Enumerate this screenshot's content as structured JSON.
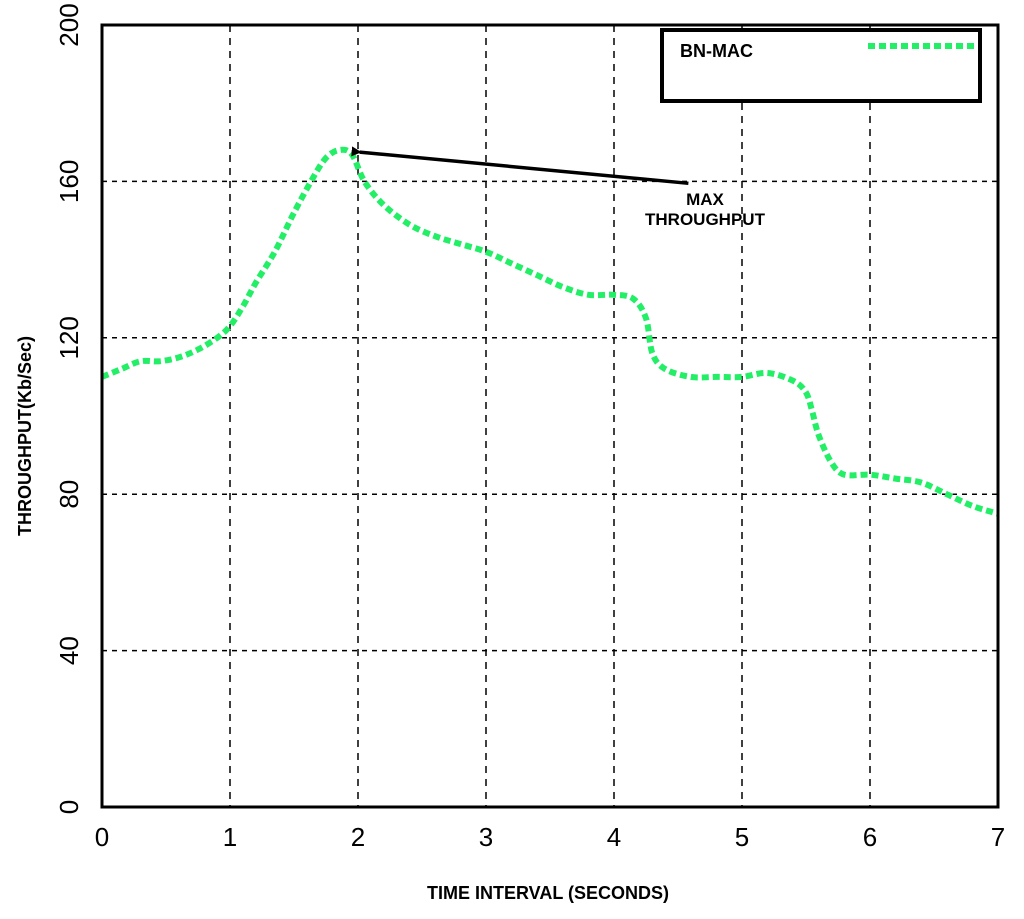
{
  "chart_data": {
    "type": "line",
    "xlabel": "TIME INTERVAL (SECONDS)",
    "ylabel": "THROUGHPUT(Kb/Sec)",
    "xlim": [
      0,
      7
    ],
    "ylim": [
      0,
      200
    ],
    "x_ticks": [
      0,
      1,
      2,
      3,
      4,
      5,
      6,
      7
    ],
    "y_ticks": [
      0,
      40,
      80,
      120,
      160,
      200
    ],
    "grid": true,
    "legend_position": "top-right",
    "series": [
      {
        "name": "BN-MAC",
        "color": "#22ee66",
        "x": [
          0.0,
          0.15,
          0.3,
          0.45,
          0.6,
          0.75,
          0.9,
          1.0,
          1.1,
          1.2,
          1.35,
          1.5,
          1.65,
          1.75,
          1.85,
          1.95,
          2.05,
          2.2,
          2.4,
          2.6,
          2.8,
          3.0,
          3.2,
          3.4,
          3.6,
          3.8,
          4.0,
          4.15,
          4.25,
          4.3,
          4.4,
          4.6,
          4.8,
          5.0,
          5.2,
          5.4,
          5.5,
          5.55,
          5.6,
          5.7,
          5.8,
          6.0,
          6.2,
          6.4,
          6.6,
          6.8,
          7.0
        ],
        "y": [
          110,
          112,
          114,
          114,
          115,
          117,
          120,
          123,
          128,
          134,
          142,
          152,
          161,
          166,
          168,
          167,
          160,
          154,
          149,
          146,
          144,
          142,
          139,
          136,
          133,
          131,
          131,
          130,
          125,
          116,
          112,
          110,
          110,
          110,
          111,
          109,
          106,
          101,
          95,
          88,
          85,
          85,
          84,
          83,
          80,
          77,
          75
        ]
      }
    ],
    "annotations": [
      {
        "text_lines": [
          "MAX",
          "THROUGHPUT"
        ],
        "target_x": 1.95,
        "target_y": 168,
        "text_x": 4.55,
        "text_y": 159
      }
    ]
  }
}
